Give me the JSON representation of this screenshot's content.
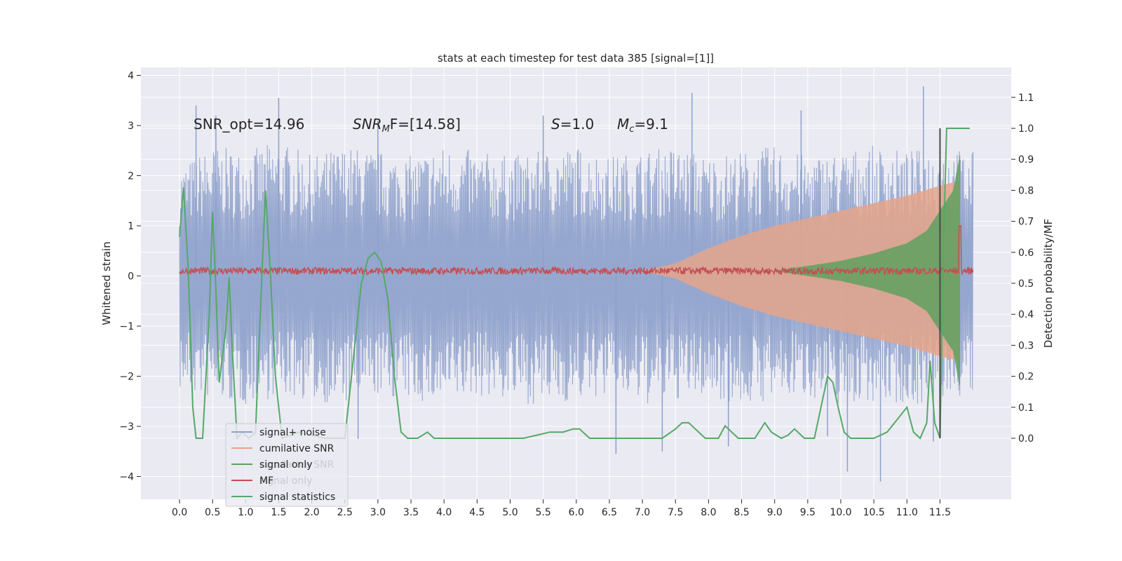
{
  "chart_data": {
    "type": "line",
    "title": "stats at each timestep for test data 385 [signal=[1]]",
    "xlabel": "",
    "ylabel": "Whitened strain",
    "ylabel_right": "Detection probability/MF",
    "xlim": [
      -0.6,
      12.6
    ],
    "ylim": [
      -4.45,
      4.15
    ],
    "ylim_right": [
      -0.19,
      1.22
    ],
    "x_ticks": [
      "0.0",
      "0.5",
      "1.0",
      "1.5",
      "2.0",
      "2.5",
      "3.0",
      "3.5",
      "4.0",
      "4.5",
      "5.0",
      "5.5",
      "6.0",
      "6.5",
      "7.0",
      "7.5",
      "8.0",
      "8.5",
      "9.0",
      "9.5",
      "10.0",
      "10.5",
      "11.0",
      "11.5"
    ],
    "x_tick_values": [
      0.0,
      0.5,
      1.0,
      1.5,
      2.0,
      2.5,
      3.0,
      3.5,
      4.0,
      4.5,
      5.0,
      5.5,
      6.0,
      6.5,
      7.0,
      7.5,
      8.0,
      8.5,
      9.0,
      9.5,
      10.0,
      10.5,
      11.0,
      11.5
    ],
    "y_ticks": [
      "−4",
      "−3",
      "−2",
      "−1",
      "0",
      "1",
      "2",
      "3",
      "4"
    ],
    "y_tick_values": [
      -4,
      -3,
      -2,
      -1,
      0,
      1,
      2,
      3,
      4
    ],
    "y_right_ticks": [
      "0.0",
      "0.1",
      "0.2",
      "0.3",
      "0.4",
      "0.5",
      "0.6",
      "0.7",
      "0.8",
      "0.9",
      "1.0",
      "1.1"
    ],
    "y_right_tick_values": [
      0.0,
      0.1,
      0.2,
      0.3,
      0.4,
      0.5,
      0.6,
      0.7,
      0.8,
      0.9,
      1.0,
      1.1
    ],
    "annotations": {
      "snr_opt": "SNR_opt=14.96",
      "snr_mf_main": "SNR",
      "snr_mf_sub": "M",
      "snr_mf_rest": "F=[14.58]",
      "s_main": "S",
      "s_rest": "=1.0",
      "mc_main": "M",
      "mc_sub": "c",
      "mc_rest": "=9.1"
    },
    "vertical_line_x": 11.5,
    "series": [
      {
        "name": "signal+ noise",
        "color": "#8da0cb",
        "axis": "left",
        "x_start": 0.0,
        "x_end": 12.0,
        "envelope_upper": [
          [
            0.0,
            2.2
          ],
          [
            0.5,
            2.6
          ],
          [
            1.0,
            2.5
          ],
          [
            1.5,
            2.7
          ],
          [
            2.0,
            2.4
          ],
          [
            2.5,
            2.6
          ],
          [
            3.0,
            2.5
          ],
          [
            3.5,
            2.4
          ],
          [
            4.0,
            2.6
          ],
          [
            4.5,
            2.5
          ],
          [
            5.0,
            2.4
          ],
          [
            5.5,
            2.5
          ],
          [
            6.0,
            2.6
          ],
          [
            6.5,
            2.4
          ],
          [
            7.0,
            2.5
          ],
          [
            7.5,
            2.6
          ],
          [
            8.0,
            2.4
          ],
          [
            8.5,
            2.5
          ],
          [
            9.0,
            2.6
          ],
          [
            9.5,
            2.4
          ],
          [
            10.0,
            2.5
          ],
          [
            10.5,
            2.6
          ],
          [
            11.0,
            2.5
          ],
          [
            11.5,
            2.6
          ],
          [
            12.0,
            2.5
          ]
        ],
        "envelope_lower": [
          [
            0.0,
            -2.3
          ],
          [
            0.5,
            -2.5
          ],
          [
            1.0,
            -2.6
          ],
          [
            1.5,
            -2.4
          ],
          [
            2.0,
            -2.5
          ],
          [
            2.5,
            -2.6
          ],
          [
            3.0,
            -2.4
          ],
          [
            3.5,
            -2.5
          ],
          [
            4.0,
            -2.6
          ],
          [
            4.5,
            -2.4
          ],
          [
            5.0,
            -2.5
          ],
          [
            5.5,
            -2.6
          ],
          [
            6.0,
            -2.5
          ],
          [
            6.5,
            -2.4
          ],
          [
            7.0,
            -2.6
          ],
          [
            7.5,
            -2.5
          ],
          [
            8.0,
            -2.4
          ],
          [
            8.5,
            -2.6
          ],
          [
            9.0,
            -2.5
          ],
          [
            9.5,
            -2.4
          ],
          [
            10.0,
            -2.6
          ],
          [
            10.5,
            -2.5
          ],
          [
            11.0,
            -2.6
          ],
          [
            11.5,
            -2.5
          ],
          [
            12.0,
            -2.4
          ]
        ],
        "spikes": [
          [
            0.25,
            3.4
          ],
          [
            0.55,
            3.2
          ],
          [
            1.5,
            3.55
          ],
          [
            3.0,
            3.1
          ],
          [
            5.5,
            3.2
          ],
          [
            7.75,
            3.65
          ],
          [
            9.4,
            3.3
          ],
          [
            11.25,
            3.78
          ],
          [
            8.3,
            -3.4
          ],
          [
            10.1,
            -3.9
          ],
          [
            10.6,
            -4.1
          ],
          [
            6.6,
            -3.55
          ],
          [
            7.3,
            -3.5
          ],
          [
            11.4,
            -3.3
          ],
          [
            9.8,
            -3.2
          ],
          [
            2.7,
            -3.25
          ]
        ]
      },
      {
        "name": "cumilative SNR",
        "color": "#e5a58a",
        "axis": "left",
        "amplitude": [
          [
            7.0,
            0.0
          ],
          [
            7.5,
            0.15
          ],
          [
            8.0,
            0.45
          ],
          [
            8.5,
            0.7
          ],
          [
            9.0,
            0.9
          ],
          [
            9.5,
            1.05
          ],
          [
            10.0,
            1.2
          ],
          [
            10.5,
            1.35
          ],
          [
            11.0,
            1.5
          ],
          [
            11.5,
            1.7
          ],
          [
            11.8,
            1.8
          ]
        ]
      },
      {
        "name": "signal only",
        "color": "#5fa05f",
        "axis": "left",
        "amplitude": [
          [
            9.0,
            0.0
          ],
          [
            9.5,
            0.1
          ],
          [
            10.0,
            0.2
          ],
          [
            10.5,
            0.35
          ],
          [
            11.0,
            0.55
          ],
          [
            11.3,
            0.8
          ],
          [
            11.5,
            1.2
          ],
          [
            11.7,
            1.6
          ],
          [
            11.8,
            2.3
          ]
        ]
      },
      {
        "name": "MF",
        "color": "#c44e52",
        "axis": "left",
        "baseline": 0.1,
        "noise": 0.07,
        "peak": [
          11.8,
          1.0
        ]
      },
      {
        "name": "signal statistics",
        "color": "#55a868",
        "axis": "right",
        "points": [
          [
            0.0,
            0.65
          ],
          [
            0.06,
            0.81
          ],
          [
            0.13,
            0.55
          ],
          [
            0.2,
            0.1
          ],
          [
            0.25,
            0.0
          ],
          [
            0.35,
            0.0
          ],
          [
            0.45,
            0.4
          ],
          [
            0.5,
            0.73
          ],
          [
            0.55,
            0.48
          ],
          [
            0.6,
            0.18
          ],
          [
            0.7,
            0.35
          ],
          [
            0.75,
            0.52
          ],
          [
            0.8,
            0.28
          ],
          [
            0.87,
            0.0
          ],
          [
            0.95,
            0.02
          ],
          [
            1.05,
            0.0
          ],
          [
            1.15,
            0.02
          ],
          [
            1.25,
            0.55
          ],
          [
            1.3,
            0.8
          ],
          [
            1.37,
            0.55
          ],
          [
            1.45,
            0.2
          ],
          [
            1.55,
            0.0
          ],
          [
            1.8,
            0.02
          ],
          [
            2.2,
            0.0
          ],
          [
            2.5,
            0.0
          ],
          [
            2.65,
            0.3
          ],
          [
            2.75,
            0.5
          ],
          [
            2.85,
            0.58
          ],
          [
            2.95,
            0.6
          ],
          [
            3.05,
            0.57
          ],
          [
            3.15,
            0.45
          ],
          [
            3.25,
            0.2
          ],
          [
            3.35,
            0.02
          ],
          [
            3.45,
            0.0
          ],
          [
            3.6,
            0.0
          ],
          [
            3.75,
            0.02
          ],
          [
            3.85,
            0.0
          ],
          [
            4.0,
            0.0
          ],
          [
            4.5,
            0.0
          ],
          [
            4.75,
            0.0
          ],
          [
            5.0,
            0.0
          ],
          [
            5.2,
            0.0
          ],
          [
            5.4,
            0.01
          ],
          [
            5.6,
            0.02
          ],
          [
            5.8,
            0.02
          ],
          [
            5.95,
            0.03
          ],
          [
            6.05,
            0.03
          ],
          [
            6.2,
            0.0
          ],
          [
            6.5,
            0.0
          ],
          [
            7.0,
            0.0
          ],
          [
            7.3,
            0.0
          ],
          [
            7.5,
            0.03
          ],
          [
            7.6,
            0.05
          ],
          [
            7.7,
            0.05
          ],
          [
            7.8,
            0.03
          ],
          [
            7.95,
            0.0
          ],
          [
            8.15,
            0.0
          ],
          [
            8.25,
            0.04
          ],
          [
            8.35,
            0.02
          ],
          [
            8.45,
            0.0
          ],
          [
            8.7,
            0.0
          ],
          [
            8.85,
            0.05
          ],
          [
            8.95,
            0.02
          ],
          [
            9.1,
            0.0
          ],
          [
            9.2,
            0.01
          ],
          [
            9.3,
            0.03
          ],
          [
            9.45,
            0.0
          ],
          [
            9.6,
            0.0
          ],
          [
            9.7,
            0.1
          ],
          [
            9.8,
            0.2
          ],
          [
            9.88,
            0.18
          ],
          [
            9.96,
            0.1
          ],
          [
            10.05,
            0.02
          ],
          [
            10.15,
            0.0
          ],
          [
            10.5,
            0.0
          ],
          [
            10.7,
            0.02
          ],
          [
            10.85,
            0.06
          ],
          [
            11.0,
            0.1
          ],
          [
            11.1,
            0.02
          ],
          [
            11.2,
            0.0
          ],
          [
            11.3,
            0.05
          ],
          [
            11.35,
            0.25
          ],
          [
            11.42,
            0.05
          ],
          [
            11.5,
            0.0
          ],
          [
            11.55,
            0.6
          ],
          [
            11.6,
            1.0
          ],
          [
            11.68,
            1.0
          ],
          [
            11.95,
            1.0
          ]
        ]
      }
    ],
    "legend": {
      "position": "lower-left",
      "entries": [
        "signal+ noise",
        "cumilative SNR",
        "signal only",
        "MF",
        "signal statistics"
      ],
      "ghost_entries": [
        "cumilative SNR",
        "signal only"
      ]
    }
  }
}
